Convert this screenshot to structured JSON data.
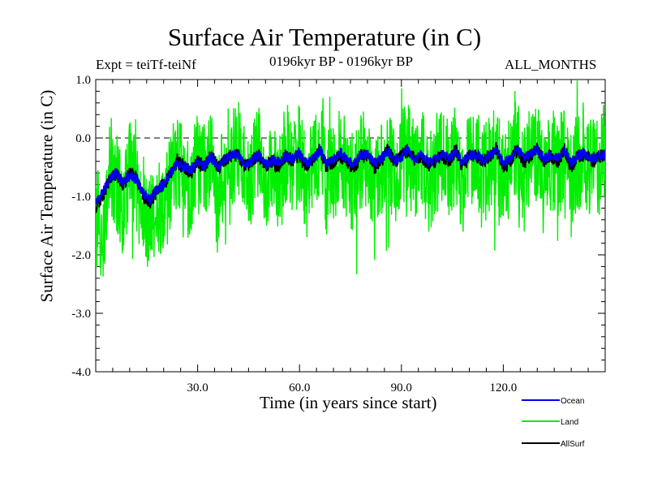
{
  "chart_data": {
    "type": "line",
    "title": "Surface Air Temperature (in C)",
    "subtitle_left": "Expt = teiTf-teiNf",
    "subtitle_center": "0196kyr BP - 0196kyr BP",
    "subtitle_right": "ALL_MONTHS",
    "xlabel": "Time (in years since start)",
    "ylabel": "Surface Air Temperature (in C)",
    "xlim": [
      0,
      150
    ],
    "ylim": [
      -4.0,
      1.0
    ],
    "x_ticks": [
      30,
      60,
      90,
      120
    ],
    "x_tick_labels": [
      "30.0",
      "60.0",
      "90.0",
      "120.0"
    ],
    "y_ticks": [
      1.0,
      0.0,
      -1.0,
      -2.0,
      -3.0,
      -4.0
    ],
    "y_tick_labels": [
      "1.0",
      "0.0",
      "-1.0",
      "-2.0",
      "-3.0",
      "-4.0"
    ],
    "reference_line": {
      "y": 0.0,
      "style": "dashed"
    },
    "series": [
      {
        "name": "Land",
        "color": "#00ee00",
        "x": [
          0,
          2,
          4,
          6,
          8,
          10,
          12,
          14,
          16,
          18,
          20,
          22,
          24,
          26,
          28,
          30,
          32,
          34,
          36,
          38,
          40,
          42,
          44,
          46,
          48,
          50,
          52,
          54,
          56,
          58,
          60,
          62,
          64,
          66,
          68,
          70,
          72,
          74,
          76,
          78,
          80,
          82,
          84,
          86,
          88,
          90,
          92,
          94,
          96,
          98,
          100,
          102,
          104,
          106,
          108,
          110,
          112,
          114,
          116,
          118,
          120,
          122,
          124,
          126,
          128,
          130,
          132,
          134,
          136,
          138,
          140,
          142,
          144,
          146,
          148,
          150
        ],
        "values": [
          -1.3,
          -1.7,
          -0.5,
          -0.7,
          -1.4,
          -0.5,
          -0.9,
          -1.1,
          -1.5,
          -1.2,
          -1.3,
          -0.7,
          -0.4,
          -0.6,
          -1.0,
          -0.4,
          -0.6,
          -0.3,
          -1.3,
          -0.4,
          -0.5,
          -0.1,
          -0.7,
          -0.6,
          -0.2,
          -0.9,
          -0.4,
          -0.8,
          -0.3,
          -0.6,
          -0.1,
          -1.0,
          -0.4,
          -0.2,
          -0.8,
          -0.5,
          -0.2,
          -0.6,
          -0.9,
          -0.4,
          -0.3,
          -0.8,
          -0.5,
          -0.2,
          -0.7,
          -0.4,
          -0.1,
          -0.6,
          -0.3,
          -0.8,
          -0.5,
          -0.3,
          -0.6,
          -0.2,
          -0.9,
          -0.4,
          -0.3,
          -0.7,
          -0.4,
          -0.2,
          -0.8,
          -0.5,
          -0.1,
          -0.6,
          -0.3,
          -0.2,
          -0.7,
          -0.4,
          -0.5,
          -0.2,
          -0.8,
          -0.4,
          -0.3,
          -0.6,
          -0.4,
          -0.3
        ],
        "noise_amplitude": 0.85
      },
      {
        "name": "AllSurf",
        "color": "#000000",
        "x": [
          0,
          2,
          4,
          6,
          8,
          10,
          12,
          14,
          16,
          18,
          20,
          22,
          24,
          26,
          28,
          30,
          32,
          34,
          36,
          38,
          40,
          42,
          44,
          46,
          48,
          50,
          52,
          54,
          56,
          58,
          60,
          62,
          64,
          66,
          68,
          70,
          72,
          74,
          76,
          78,
          80,
          82,
          84,
          86,
          88,
          90,
          92,
          94,
          96,
          98,
          100,
          102,
          104,
          106,
          108,
          110,
          112,
          114,
          116,
          118,
          120,
          122,
          124,
          126,
          128,
          130,
          132,
          134,
          136,
          138,
          140,
          142,
          144,
          146,
          148,
          150
        ],
        "values": [
          -1.2,
          -1.0,
          -0.7,
          -0.6,
          -0.8,
          -0.6,
          -0.7,
          -1.0,
          -1.1,
          -0.9,
          -0.8,
          -0.6,
          -0.4,
          -0.5,
          -0.6,
          -0.4,
          -0.5,
          -0.3,
          -0.5,
          -0.4,
          -0.3,
          -0.3,
          -0.5,
          -0.4,
          -0.3,
          -0.5,
          -0.4,
          -0.5,
          -0.3,
          -0.4,
          -0.3,
          -0.5,
          -0.4,
          -0.2,
          -0.5,
          -0.4,
          -0.3,
          -0.4,
          -0.5,
          -0.3,
          -0.3,
          -0.5,
          -0.4,
          -0.2,
          -0.4,
          -0.3,
          -0.2,
          -0.4,
          -0.3,
          -0.5,
          -0.4,
          -0.3,
          -0.4,
          -0.2,
          -0.5,
          -0.3,
          -0.3,
          -0.4,
          -0.3,
          -0.2,
          -0.5,
          -0.4,
          -0.2,
          -0.4,
          -0.3,
          -0.2,
          -0.4,
          -0.3,
          -0.4,
          -0.2,
          -0.5,
          -0.3,
          -0.3,
          -0.4,
          -0.3,
          -0.3
        ],
        "noise_amplitude": 0.12
      },
      {
        "name": "Ocean",
        "color": "#0000ee",
        "x": [
          0,
          2,
          4,
          6,
          8,
          10,
          12,
          14,
          16,
          18,
          20,
          22,
          24,
          26,
          28,
          30,
          32,
          34,
          36,
          38,
          40,
          42,
          44,
          46,
          48,
          50,
          52,
          54,
          56,
          58,
          60,
          62,
          64,
          66,
          68,
          70,
          72,
          74,
          76,
          78,
          80,
          82,
          84,
          86,
          88,
          90,
          92,
          94,
          96,
          98,
          100,
          102,
          104,
          106,
          108,
          110,
          112,
          114,
          116,
          118,
          120,
          122,
          124,
          126,
          128,
          130,
          132,
          134,
          136,
          138,
          140,
          142,
          144,
          146,
          148,
          150
        ],
        "values": [
          -1.15,
          -0.95,
          -0.7,
          -0.6,
          -0.75,
          -0.65,
          -0.7,
          -0.95,
          -1.05,
          -0.9,
          -0.8,
          -0.6,
          -0.45,
          -0.5,
          -0.55,
          -0.42,
          -0.48,
          -0.32,
          -0.5,
          -0.35,
          -0.3,
          -0.3,
          -0.45,
          -0.4,
          -0.28,
          -0.45,
          -0.38,
          -0.42,
          -0.3,
          -0.36,
          -0.25,
          -0.42,
          -0.36,
          -0.2,
          -0.42,
          -0.36,
          -0.24,
          -0.38,
          -0.45,
          -0.3,
          -0.28,
          -0.42,
          -0.36,
          -0.22,
          -0.38,
          -0.32,
          -0.2,
          -0.38,
          -0.3,
          -0.42,
          -0.36,
          -0.28,
          -0.36,
          -0.22,
          -0.42,
          -0.3,
          -0.28,
          -0.38,
          -0.3,
          -0.2,
          -0.42,
          -0.36,
          -0.18,
          -0.34,
          -0.28,
          -0.2,
          -0.36,
          -0.28,
          -0.36,
          -0.2,
          -0.42,
          -0.3,
          -0.28,
          -0.36,
          -0.3,
          -0.28
        ],
        "noise_amplitude": 0.09
      }
    ],
    "legend": [
      {
        "label": "Ocean",
        "color": "#0000ee"
      },
      {
        "label": "Land",
        "color": "#00ee00"
      },
      {
        "label": "AllSurf",
        "color": "#000000"
      }
    ],
    "legend_position": "bottom-right, below plot"
  }
}
